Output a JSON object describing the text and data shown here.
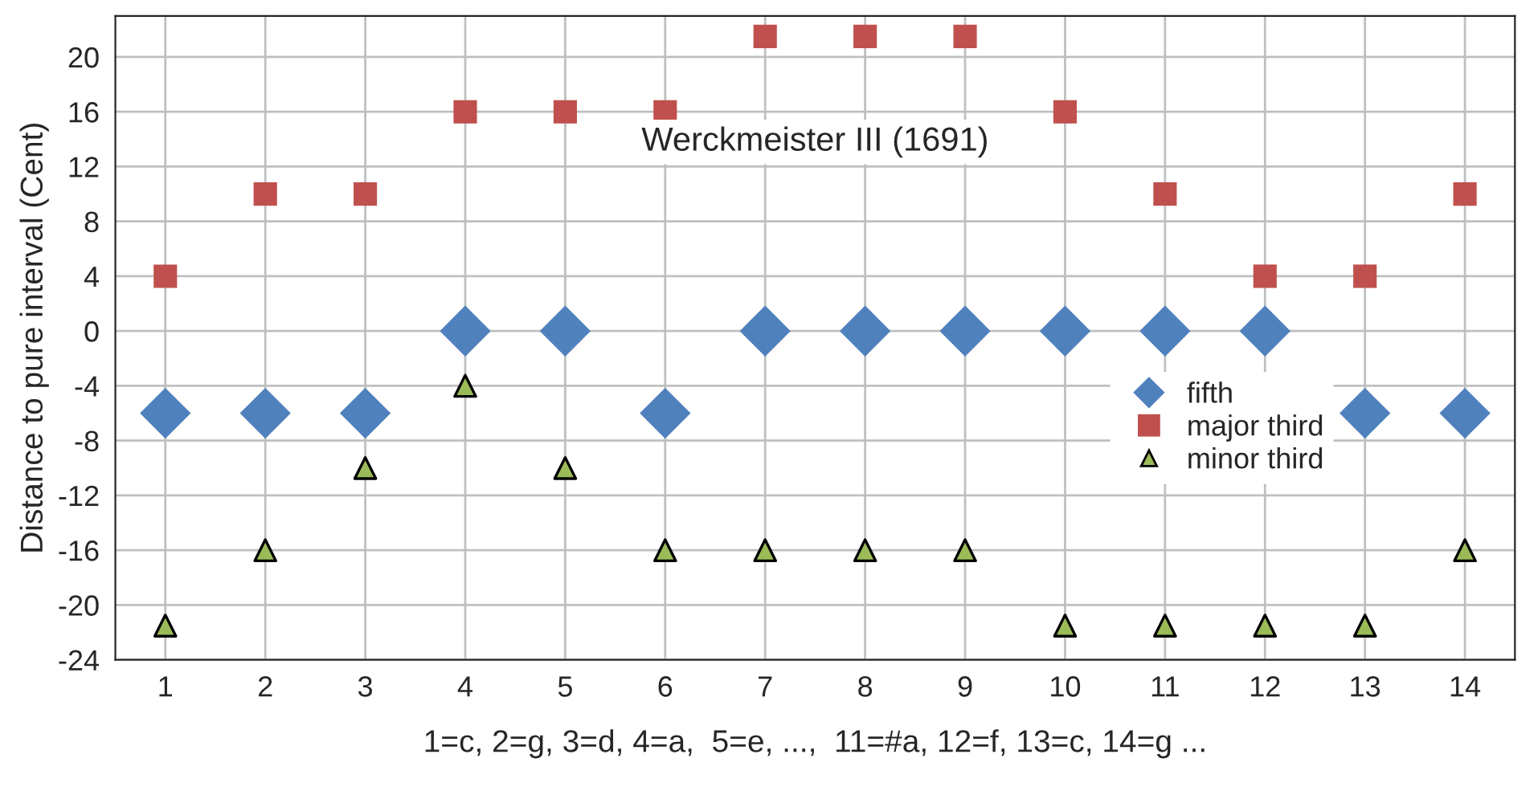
{
  "chart_data": {
    "type": "scatter",
    "title": "Werckmeister III (1691)",
    "xlabel": "1=c, 2=g, 3=d, 4=a,  5=e, ...,  11=#a, 12=f, 13=c, 14=g ...",
    "ylabel": "Distance to pure interval (Cent)",
    "categories": [
      "1",
      "2",
      "3",
      "4",
      "5",
      "6",
      "7",
      "8",
      "9",
      "10",
      "11",
      "12",
      "13",
      "14"
    ],
    "series": [
      {
        "name": "fifth",
        "color": "#4f81bd",
        "marker": "diamond",
        "values": [
          -6,
          -6,
          -6,
          0,
          0,
          -6,
          0,
          0,
          0,
          0,
          0,
          0,
          -6,
          -6
        ]
      },
      {
        "name": "major third",
        "color": "#c0504d",
        "marker": "square",
        "values": [
          4,
          10,
          10,
          16,
          16,
          16,
          21.5,
          21.5,
          21.5,
          16,
          10,
          4,
          4,
          10
        ]
      },
      {
        "name": "minor third",
        "color": "#9bbb59",
        "marker": "triangle",
        "values": [
          -21.5,
          -16,
          -10,
          -4,
          -10,
          -16,
          -16,
          -16,
          -16,
          -21.5,
          -21.5,
          -21.5,
          -21.5,
          -16
        ]
      }
    ],
    "ylim": [
      -24,
      23
    ],
    "yticks": [
      -24,
      -20,
      -16,
      -12,
      -8,
      -4,
      0,
      4,
      8,
      12,
      16,
      20
    ],
    "grid": true,
    "legend": "right"
  }
}
